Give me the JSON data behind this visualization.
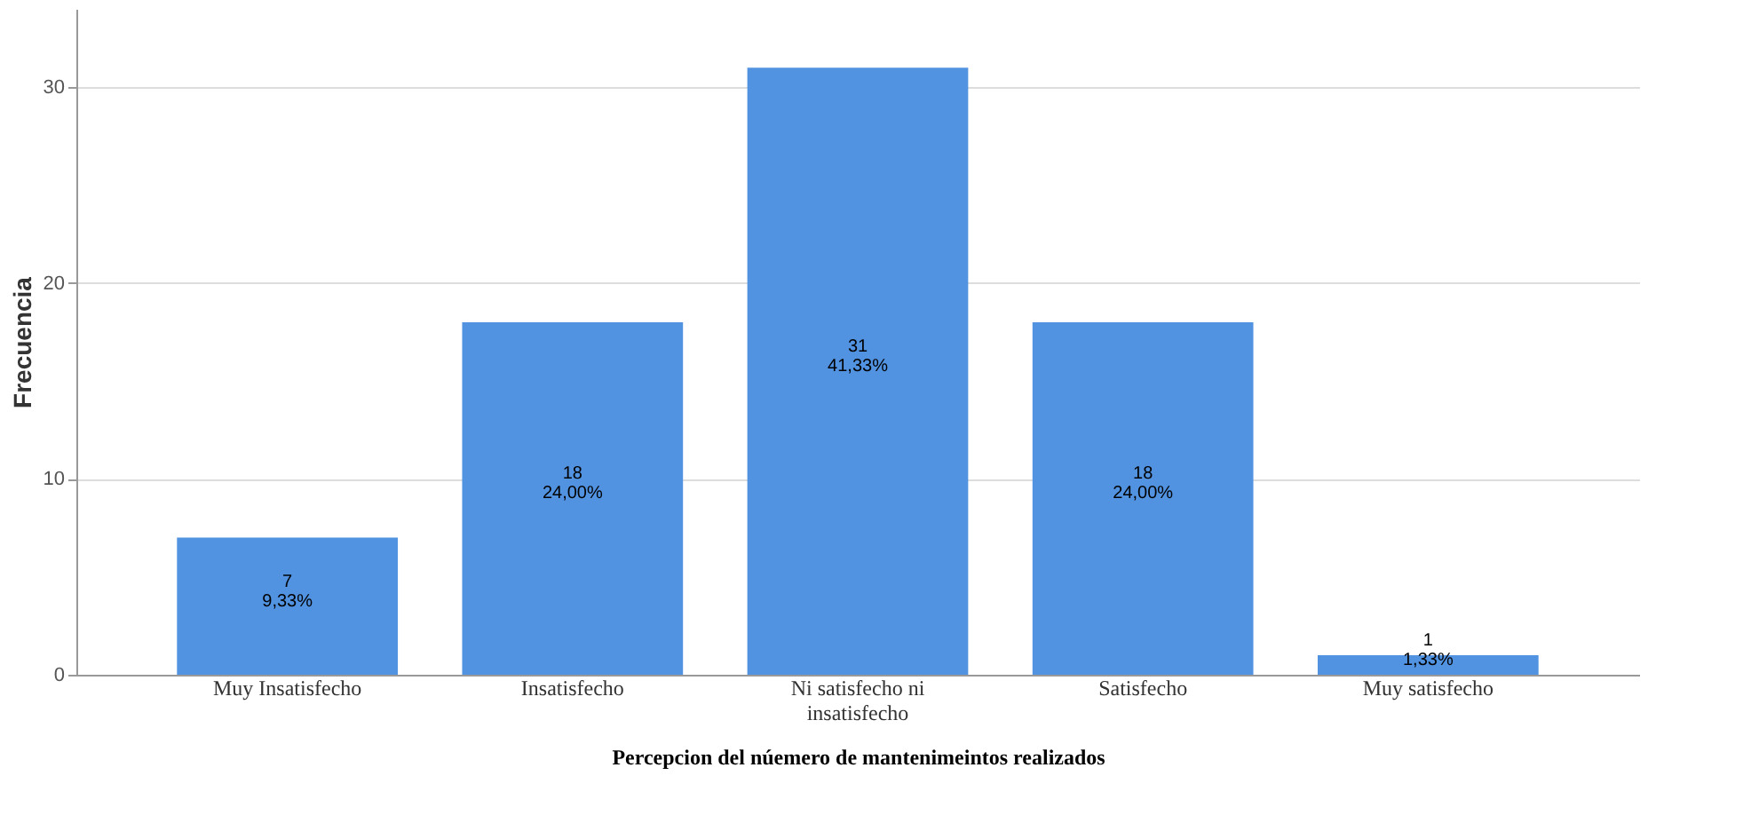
{
  "chart_data": {
    "type": "bar",
    "xlabel": "Percepcion del núemero de mantenimeintos realizados",
    "ylabel": "Frecuencia",
    "categories": [
      "Muy Insatisfecho",
      "Insatisfecho",
      "Ni satisfecho ni insatisfecho",
      "Satisfecho",
      "Muy satisfecho"
    ],
    "values": [
      7,
      18,
      31,
      18,
      1
    ],
    "value_labels": [
      "7\n9,33%",
      "18\n24,00%",
      "31\n41,33%",
      "18\n24,00%",
      "1\n1,33%"
    ],
    "color": "#5193e1",
    "ylim": [
      0,
      34
    ],
    "yticks": [
      0,
      10,
      20,
      30
    ],
    "grid": "y"
  }
}
